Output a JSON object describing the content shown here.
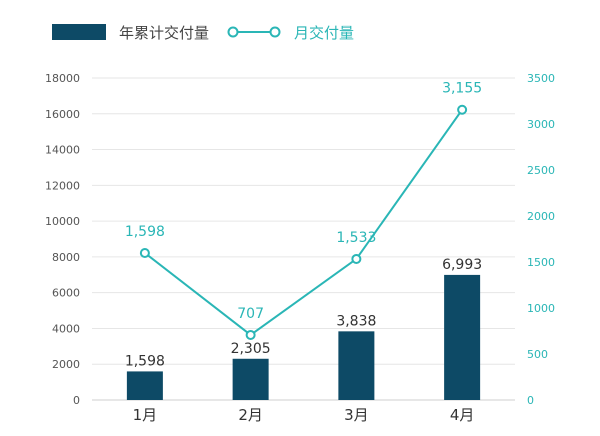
{
  "colors": {
    "bar": "#0d4a66",
    "line": "#2ab6b6",
    "grid": "#e6e6e6"
  },
  "legend": {
    "bar_label": "年累计交付量",
    "line_label": "月交付量"
  },
  "chart_data": {
    "type": "bar",
    "categories": [
      "1月",
      "2月",
      "3月",
      "4月"
    ],
    "series": [
      {
        "name": "年累计交付量",
        "type": "bar",
        "axis": "left",
        "values": [
          1598,
          2305,
          3838,
          6993
        ],
        "labels": [
          "1,598",
          "2,305",
          "3,838",
          "6,993"
        ]
      },
      {
        "name": "月交付量",
        "type": "line",
        "axis": "right",
        "values": [
          1598,
          707,
          1533,
          3155
        ],
        "labels": [
          "1,598",
          "707",
          "1,533",
          "3,155"
        ]
      }
    ],
    "y_left": {
      "ylim": [
        0,
        18000
      ],
      "ticks": [
        "0",
        "2000",
        "4000",
        "6000",
        "8000",
        "10000",
        "12000",
        "14000",
        "16000",
        "18000"
      ]
    },
    "y_right": {
      "ylim": [
        0,
        3500
      ],
      "ticks": [
        "0",
        "500",
        "1000",
        "1500",
        "2000",
        "2500",
        "3000",
        "3500"
      ]
    },
    "grid": true,
    "legend_position": "top-left"
  }
}
